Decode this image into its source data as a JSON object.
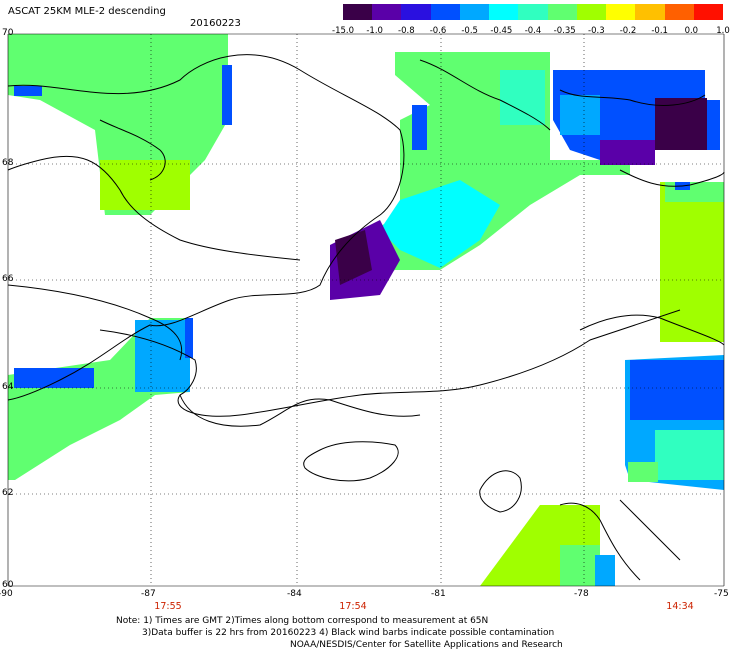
{
  "header": {
    "title": "ASCAT 25KM MLE-2 descending",
    "date": "20160223"
  },
  "colorbar": {
    "labels": [
      "-15.0",
      "-1.0",
      "-0.8",
      "-0.6",
      "-0.5",
      "-0.45",
      "-0.4",
      "-0.35",
      "-0.3",
      "-0.2",
      "-0.1",
      "0.0",
      "1.0"
    ],
    "colors": [
      "#3a0048",
      "#5a00a8",
      "#2a10e0",
      "#0050ff",
      "#00a8ff",
      "#00ffff",
      "#30ffc0",
      "#60ff70",
      "#a0ff00",
      "#ffff00",
      "#ffc000",
      "#ff6000",
      "#ff1000"
    ]
  },
  "axes": {
    "lat_labels": [
      "70",
      "68",
      "66",
      "64",
      "62",
      "60"
    ],
    "lon_labels": [
      "-90",
      "-87",
      "-84",
      "-81",
      "-78",
      "-75"
    ]
  },
  "times": [
    "17:55",
    "17:54",
    "14:34"
  ],
  "notes": {
    "line1": "Note: 1) Times are GMT 2)Times along bottom correspond to measurement at 65N",
    "line2": "3)Data buffer is 22 hrs from 20160223 4) Black wind barbs indicate possible contamination",
    "line3": "NOAA/NESDIS/Center for Satellite Applications and Research"
  }
}
